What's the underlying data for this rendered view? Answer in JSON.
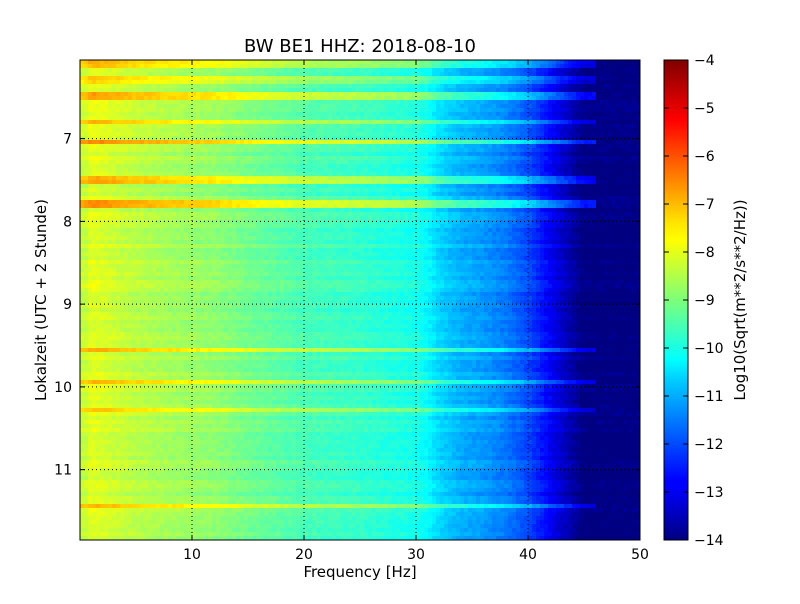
{
  "chart_data": {
    "type": "heatmap",
    "title": "BW BE1 HHZ: 2018-08-10",
    "xlabel": "Frequency [Hz]",
    "ylabel": "Lokalzeit (UTC + 2 Stunde)",
    "xlim": [
      0,
      50
    ],
    "ylim": [
      6.05,
      11.85
    ],
    "y_inverted": true,
    "grid": true,
    "grid_style": "dotted",
    "colormap": "jet",
    "xticks": [
      10,
      20,
      30,
      40,
      50
    ],
    "yticks": [
      7,
      8,
      9,
      10,
      11
    ],
    "colorbar": {
      "label": "Log10(Sqrt(m**2/s**2/Hz))",
      "range": [
        -14,
        -4
      ],
      "ticks": [
        -4,
        -5,
        -6,
        -7,
        -8,
        -9,
        -10,
        -11,
        -12,
        -13,
        -14
      ]
    },
    "level_profile": [
      {
        "frequency": 0.5,
        "value": -8.3
      },
      {
        "frequency": 1,
        "value": -8.0
      },
      {
        "frequency": 2,
        "value": -8.1
      },
      {
        "frequency": 5,
        "value": -8.4
      },
      {
        "frequency": 8,
        "value": -8.6
      },
      {
        "frequency": 10,
        "value": -8.7
      },
      {
        "frequency": 12,
        "value": -8.8
      },
      {
        "frequency": 15,
        "value": -9.1
      },
      {
        "frequency": 20,
        "value": -9.5
      },
      {
        "frequency": 25,
        "value": -9.7
      },
      {
        "frequency": 28,
        "value": -9.9
      },
      {
        "frequency": 30,
        "value": -10.0
      },
      {
        "frequency": 31,
        "value": -10.2
      },
      {
        "frequency": 32,
        "value": -10.6
      },
      {
        "frequency": 34,
        "value": -11.0
      },
      {
        "frequency": 36,
        "value": -11.2
      },
      {
        "frequency": 38,
        "value": -11.5
      },
      {
        "frequency": 40,
        "value": -12.0
      },
      {
        "frequency": 41,
        "value": -12.4
      },
      {
        "frequency": 42,
        "value": -12.8
      },
      {
        "frequency": 43,
        "value": -13.2
      },
      {
        "frequency": 44,
        "value": -13.6
      },
      {
        "frequency": 45,
        "value": -14.0
      },
      {
        "frequency": 50,
        "value": -14.0
      }
    ],
    "bright_lines": [
      {
        "time": 6.11,
        "value_offset": 1.0
      },
      {
        "time": 6.28,
        "value_offset": 0.8
      },
      {
        "time": 6.48,
        "value_offset": 1.2
      },
      {
        "time": 6.81,
        "value_offset": 1.1
      },
      {
        "time": 7.05,
        "value_offset": 1.4
      },
      {
        "time": 7.5,
        "value_offset": 1.2
      },
      {
        "time": 7.8,
        "value_offset": 1.3
      },
      {
        "time": 9.55,
        "value_offset": 1.1
      },
      {
        "time": 9.95,
        "value_offset": 1.2
      },
      {
        "time": 10.27,
        "value_offset": 0.8
      },
      {
        "time": 11.43,
        "value_offset": 1.0
      }
    ]
  }
}
